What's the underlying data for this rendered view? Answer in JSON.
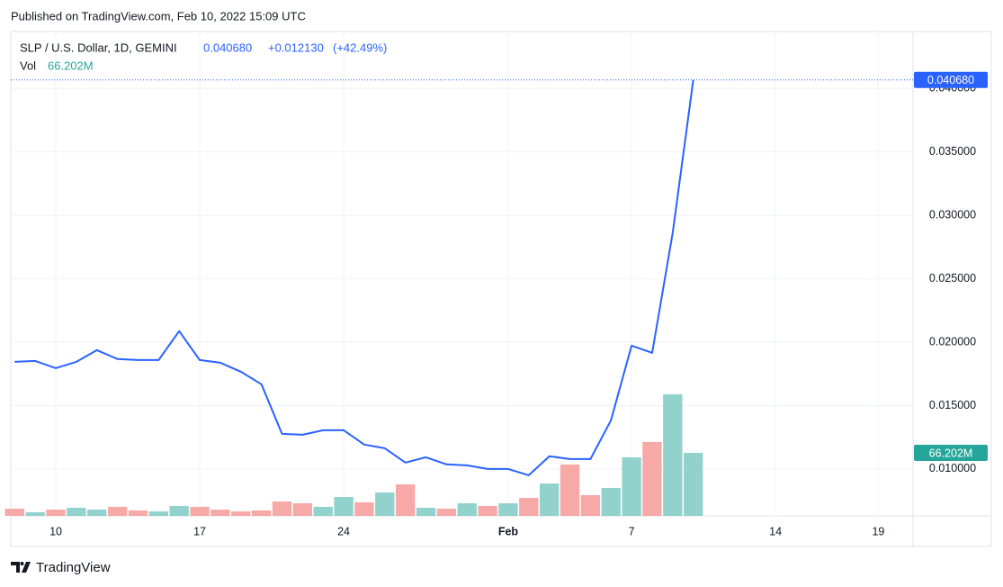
{
  "published": "Published on TradingView.com, Feb 10, 2022 15:09 UTC",
  "brand": "TradingView",
  "chart_data": {
    "type": "line",
    "title": "SLP / U.S. Dollar, 1D, GEMINI",
    "change": "+0.012130",
    "change_pct": "(+42.49%)",
    "categories": [
      null,
      null,
      "10",
      null,
      null,
      null,
      null,
      null,
      null,
      "17",
      null,
      null,
      null,
      null,
      null,
      null,
      "24",
      null,
      null,
      null,
      null,
      null,
      null,
      null,
      "Feb",
      null,
      null,
      null,
      null,
      null,
      "7",
      null,
      null,
      null,
      null,
      null,
      null,
      "14",
      null,
      null,
      null,
      null,
      "19",
      null
    ],
    "ylim": [
      0.0063,
      0.0445
    ],
    "yticks": [
      {
        "value": 0.01,
        "label": "0.010000"
      },
      {
        "value": 0.015,
        "label": "0.015000"
      },
      {
        "value": 0.02,
        "label": "0.020000"
      },
      {
        "value": 0.025,
        "label": "0.025000"
      },
      {
        "value": 0.03,
        "label": "0.030000"
      },
      {
        "value": 0.035,
        "label": "0.035000"
      },
      {
        "value": 0.04,
        "label": "0.040000"
      }
    ],
    "y2lim": [
      0,
      508.8
    ],
    "grid": true,
    "series": [
      {
        "name": "SLP / U.S. Dollar",
        "color": "#2962ff",
        "last_label": "0.040680",
        "values": [
          0.01845,
          0.01852,
          0.01795,
          0.01845,
          0.01937,
          0.01867,
          0.01859,
          0.01859,
          0.02087,
          0.01859,
          0.01838,
          0.01767,
          0.01668,
          0.01277,
          0.0127,
          0.01305,
          0.01305,
          0.01192,
          0.01163,
          0.0105,
          0.01092,
          0.01036,
          0.01028,
          0.01,
          0.01,
          0.0095,
          0.011,
          0.01078,
          0.01078,
          0.01384,
          0.01973,
          0.01916,
          0.02861,
          0.04068,
          null,
          null,
          null,
          null,
          null,
          null,
          null,
          null,
          null,
          null
        ]
      },
      {
        "name": "Vol",
        "axis": "y2",
        "type": "bar",
        "color": "#26a69a",
        "last_label": "66.202M",
        "colors": [
          "#f7a9a7",
          "#92d2cc",
          "#f7a9a7",
          "#92d2cc",
          "#92d2cc",
          "#f7a9a7",
          "#f7a9a7",
          "#92d2cc",
          "#92d2cc",
          "#f7a9a7",
          "#f7a9a7",
          "#f7a9a7",
          "#f7a9a7",
          "#f7a9a7",
          "#f7a9a7",
          "#92d2cc",
          "#92d2cc",
          "#f7a9a7",
          "#92d2cc",
          "#f7a9a7",
          "#92d2cc",
          "#f7a9a7",
          "#92d2cc",
          "#f7a9a7",
          "#92d2cc",
          "#f7a9a7",
          "#92d2cc",
          "#f7a9a7",
          "#f7a9a7",
          "#92d2cc",
          "#92d2cc",
          "#f7a9a7",
          "#92d2cc",
          "#92d2cc",
          null,
          null,
          null,
          null,
          null,
          null,
          null,
          null,
          null,
          null
        ],
        "values": [
          7.6,
          3.8,
          6.6,
          8.5,
          6.6,
          9.5,
          5.7,
          4.7,
          10.4,
          9.5,
          6.6,
          4.7,
          5.7,
          15.1,
          13.2,
          9.5,
          19.9,
          14.2,
          24.6,
          33.1,
          8.5,
          7.6,
          13.2,
          10.4,
          13.2,
          18.9,
          34.0,
          53.9,
          21.8,
          29.3,
          61.5,
          77.6,
          127.7,
          66.202,
          null,
          null,
          null,
          null,
          null,
          null,
          null,
          null,
          null,
          null
        ]
      }
    ]
  }
}
